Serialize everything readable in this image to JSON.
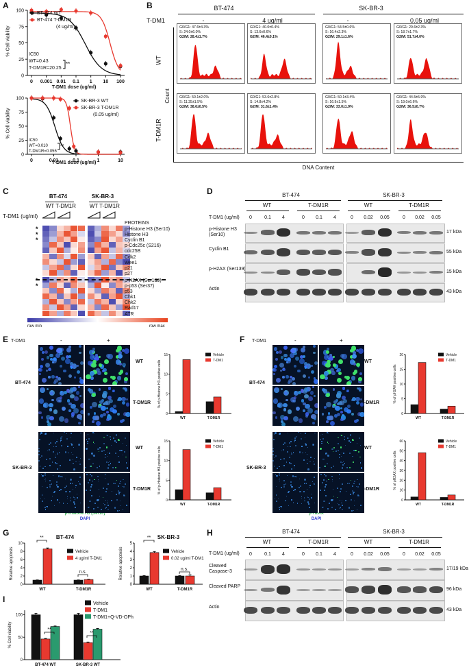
{
  "panels": {
    "a": "A",
    "b": "B",
    "c": "C",
    "d": "D",
    "e": "E",
    "f": "F",
    "g": "G",
    "h": "H",
    "i": "I"
  },
  "panelA": {
    "top": {
      "legend": [
        "BT-474 WT",
        "BT-474 T-DM1R",
        "(4 ug/ml)"
      ],
      "ic50": "IC50",
      "ic50_wt": "WT=0.43",
      "ic50_r": "T-DM1R=20.25",
      "sig": "**",
      "ylabel": "% Cell viability",
      "xlabel": "T-DM1 dose (ug/ml)",
      "yticks": [
        "0",
        "25",
        "50",
        "75",
        "100"
      ],
      "xticks": [
        "0",
        "0.001",
        "0.01",
        "0.1",
        "1",
        "10",
        "100"
      ]
    },
    "bottom": {
      "legend": [
        "SK-BR-3 WT",
        "SK-BR-3 T-DM1R",
        "(0.05 ug/ml)"
      ],
      "ic50": "IC50",
      "ic50_wt": "WT=0.010",
      "ic50_r": "T-DM1R=0.055",
      "sig": "**",
      "ylabel": "% Cell viability",
      "xlabel": "T-DM1 dose (ug/ml)",
      "yticks": [
        "0",
        "25",
        "50",
        "75",
        "100"
      ],
      "xticks": [
        "0",
        "0.01",
        "0.1",
        "1",
        "10"
      ]
    }
  },
  "panelB": {
    "cell_lines": [
      "BT-474",
      "SK-BR-3"
    ],
    "tdm1": "T-DM1",
    "cols": [
      "-",
      "4 ug/ml",
      "-",
      "0.05 ug/ml"
    ],
    "rows": [
      "WT",
      "T-DM1R"
    ],
    "ylabel": "Count",
    "xlabel": "DNA Content",
    "stats": [
      [
        "G0/G1: 47.6±4.3%",
        "S: 24.0±6.0%",
        "G2/M: 28.4±1.7%"
      ],
      [
        "G0/G1: 40.0±0.4%",
        "S: 13.6±0.6%",
        "G2/M: 46.4±0.1%"
      ],
      [
        "G0/G1: 54.5±0.6%",
        "S: 16.4±2.3%",
        "G2/M: 29.1±1.6%"
      ],
      [
        "G0/G1: 29.6±2.3%",
        "S: 18.7±1.7%",
        "G2/M: 51.7±4.0%"
      ],
      [
        "G0/G1: 50.1±2.0%",
        "S: 11.35±1.5%",
        "G2/M: 38.6±0.5%"
      ],
      [
        "G0/G1: 53.6±2.8%",
        "S: 14.8±4.2%",
        "G2/M: 31.6±1.4%"
      ],
      [
        "G0/G1: 50.1±3.4%",
        "S: 16.9±1.5%",
        "G2/M: 33.0±1.9%"
      ],
      [
        "G0/G1: 44.5±5.9%",
        "S: 19.0±6.6%",
        "G2/M: 36.5±0.7%"
      ]
    ]
  },
  "panelC": {
    "cell_lines": [
      "BT-474",
      "SK-BR-3"
    ],
    "groups": [
      "WT",
      "T-DM1R",
      "WT",
      "T-DM1R"
    ],
    "tdm1": "T-DM1 (ug/ml)",
    "proteins_title": "PROTEINS",
    "proteins": [
      "p-Histone H3 (Ser10)",
      "Histone H3",
      "Cyclin B1",
      "p-Cdc25c (S216)",
      "cdc25B",
      "Cdk2",
      "Wee1",
      "p21",
      "p27",
      "p-H2AX (Ser139)",
      "p-p53 (Ser37)",
      "p53",
      "Chk1",
      "Chk2",
      "Rad17",
      "ATR"
    ],
    "row_min": "row min",
    "row_max": "row max",
    "star": "*"
  },
  "panelD": {
    "cell_lines": [
      "BT-474",
      "SK-BR-3"
    ],
    "groups": [
      "WT",
      "T-DM1R",
      "WT",
      "T-DM1R"
    ],
    "tdm1": "T-DM1 (ug/ml)",
    "doses_bt": [
      "0",
      "0.1",
      "4",
      "0",
      "0.1",
      "4"
    ],
    "doses_sk": [
      "0",
      "0.02",
      "0.05",
      "0",
      "0.02",
      "0.05"
    ],
    "rows": [
      "p-Histone H3 (Ser10)",
      "Cyclin B1",
      "p-H2AX (Ser139)",
      "Actin"
    ],
    "kda": [
      "17 kDa",
      "55 kDa",
      "15 kDa",
      "43 kDa"
    ]
  },
  "panelE": {
    "tdm1": "T-DM1",
    "minus": "-",
    "plus": "+",
    "cell_lines": [
      "BT-474",
      "SK-BR-3"
    ],
    "rows": [
      "WT",
      "T-DM1R",
      "WT",
      "T-DM1R"
    ],
    "stain": "p-Histone H3 (Ser10)",
    "dapi": "DAPI",
    "legend": [
      "Vehicle",
      "T-DM1"
    ],
    "ylabel": "% of p-Histone H3-positive cells",
    "ticks_top": [
      "0",
      "5",
      "10",
      "15"
    ],
    "ticks_bot": [
      "0",
      "5",
      "10",
      "15"
    ],
    "chart_data": [
      {
        "type": "bar",
        "categories": [
          "WT",
          "T-DM1R"
        ],
        "series": [
          {
            "name": "Vehicle",
            "values": [
              0.5,
              3.0
            ]
          },
          {
            "name": "T-DM1",
            "values": [
              13.7,
              4.2
            ]
          }
        ],
        "ylabel": "% of p-Histone H3-positive cells",
        "ylim": [
          0,
          15
        ]
      },
      {
        "type": "bar",
        "categories": [
          "WT",
          "T-DM1R"
        ],
        "series": [
          {
            "name": "Vehicle",
            "values": [
              2.6,
              1.8
            ]
          },
          {
            "name": "T-DM1",
            "values": [
              12.8,
              3.1
            ]
          }
        ],
        "ylabel": "% of p-Histone H3-positive cells",
        "ylim": [
          0,
          15
        ]
      }
    ]
  },
  "panelF": {
    "tdm1": "T-DM1",
    "minus": "-",
    "plus": "+",
    "cell_lines": [
      "BT-474",
      "SK-BR-3"
    ],
    "rows": [
      "WT",
      "T-DM1R",
      "WT",
      "T-DM1R"
    ],
    "stain": "p-H2AX",
    "dapi": "DAPI",
    "legend": [
      "Vehicle",
      "T-DM1"
    ],
    "ylabel": "% of pH2AX positive cells",
    "ticks_top": [
      "0",
      "5",
      "10",
      "15",
      "20"
    ],
    "ticks_bot": [
      "0",
      "10",
      "20",
      "30",
      "40",
      "50",
      "60"
    ],
    "chart_data": [
      {
        "type": "bar",
        "categories": [
          "WT",
          "T-DM1R"
        ],
        "series": [
          {
            "name": "Vehicle",
            "values": [
              3.0,
              1.5
            ]
          },
          {
            "name": "T-DM1",
            "values": [
              17.3,
              2.5
            ]
          }
        ],
        "ylabel": "% of pH2AX positive cells",
        "ylim": [
          0,
          20
        ]
      },
      {
        "type": "bar",
        "categories": [
          "WT",
          "T-DM1R"
        ],
        "series": [
          {
            "name": "Vehicle",
            "values": [
              3.0,
              2.5
            ]
          },
          {
            "name": "T-DM1",
            "values": [
              48.0,
              5.0
            ]
          }
        ],
        "ylabel": "% of pH2AX positive cells",
        "ylim": [
          0,
          60
        ]
      }
    ]
  },
  "panelG": {
    "chart_data": [
      {
        "type": "bar",
        "title": "BT-474",
        "categories": [
          "WT",
          "T-DM1R"
        ],
        "series": [
          {
            "name": "Vehicle",
            "values": [
              1.0,
              1.0
            ]
          },
          {
            "name": "4 ug/ml T-DM1",
            "values": [
              8.6,
              1.15
            ]
          }
        ],
        "ylabel": "Relative apoptosis",
        "ylim": [
          0,
          10
        ],
        "sig": [
          "**",
          "n.s."
        ]
      },
      {
        "type": "bar",
        "title": "SK-BR-3",
        "categories": [
          "WT",
          "T-DM1R"
        ],
        "series": [
          {
            "name": "Vehicle",
            "values": [
              1.0,
              1.0
            ]
          },
          {
            "name": "0.02 ug/ml T-DM1",
            "values": [
              3.85,
              1.0
            ]
          }
        ],
        "ylabel": "Relative apoptosis",
        "ylim": [
          0,
          5
        ],
        "sig": [
          "**",
          "n.s."
        ]
      }
    ],
    "ticks_bt": [
      "0",
      "2",
      "4",
      "6",
      "8",
      "10"
    ],
    "ticks_sk": [
      "0",
      "1",
      "2",
      "3",
      "4",
      "5"
    ]
  },
  "panelH": {
    "cell_lines": [
      "BT-474",
      "SK-BR-3"
    ],
    "groups": [
      "WT",
      "T-DM1R",
      "WT",
      "T-DM1R"
    ],
    "tdm1": "T-DM1 (ug/ml)",
    "doses_bt": [
      "0",
      "0.1",
      "4",
      "0",
      "0.1",
      "4"
    ],
    "doses_sk": [
      "0",
      "0.02",
      "0.05",
      "0",
      "0.02",
      "0.05"
    ],
    "rows": [
      "Cleaved Caspase-3",
      "Cleaved PARP",
      "Actin"
    ],
    "kda": [
      "17/19 kDa",
      "96 kDa",
      "43 kDa"
    ]
  },
  "panelI": {
    "chart_data": {
      "type": "bar",
      "categories": [
        "BT-474 WT",
        "SK-BR-3 WT"
      ],
      "series": [
        {
          "name": "Vehicle",
          "values": [
            100,
            100
          ]
        },
        {
          "name": "T-DM1",
          "values": [
            46,
            38
          ]
        },
        {
          "name": "T-DM1+Q-VD-OPh",
          "values": [
            74,
            68
          ]
        }
      ],
      "ylabel": "% Cell viability",
      "ylim": [
        0,
        100
      ],
      "sig": [
        "**",
        "**"
      ]
    },
    "ticks": [
      "0",
      "50",
      "100"
    ]
  },
  "colors": {
    "red": "#e8392f",
    "black": "#111111",
    "green": "#2a9a6e",
    "flow": "#e8120c",
    "heatLow": "#3a3aa8",
    "heatHigh": "#e8431e"
  }
}
